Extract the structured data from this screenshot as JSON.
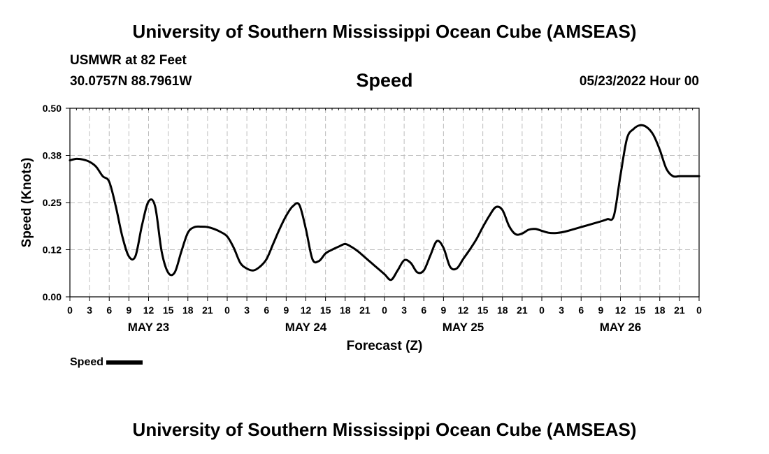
{
  "header": {
    "title": "University of Southern Mississippi Ocean Cube (AMSEAS)",
    "station": "USMWR at 82 Feet",
    "coords": "30.0757N  88.7961W",
    "run_time": "05/23/2022 Hour 00"
  },
  "footer": {
    "title": "University of Southern Mississippi Ocean Cube (AMSEAS)"
  },
  "legend": {
    "label": "Speed"
  },
  "chart_data": {
    "type": "line",
    "title": "Speed",
    "xlabel": "Forecast (Z)",
    "ylabel": "Speed (Knots)",
    "xlim": [
      0,
      96
    ],
    "ylim": [
      0,
      0.5
    ],
    "yticks": [
      "0.00",
      "0.12",
      "0.25",
      "0.38",
      "0.50"
    ],
    "xtick_labels": [
      "0",
      "3",
      "6",
      "9",
      "12",
      "15",
      "18",
      "21",
      "0",
      "3",
      "6",
      "9",
      "12",
      "15",
      "18",
      "21",
      "0",
      "3",
      "6",
      "9",
      "12",
      "15",
      "18",
      "21",
      "0",
      "3",
      "6",
      "9",
      "12",
      "15",
      "18",
      "21",
      "0"
    ],
    "day_labels": [
      {
        "label": "MAY 23",
        "hour": 12
      },
      {
        "label": "MAY 24",
        "hour": 36
      },
      {
        "label": "MAY 25",
        "hour": 60
      },
      {
        "label": "MAY 26",
        "hour": 84
      }
    ],
    "grid": true,
    "series": [
      {
        "name": "Speed",
        "color": "#000000",
        "x": [
          0,
          1,
          2,
          3,
          4,
          5,
          6,
          7,
          8,
          9,
          10,
          11,
          12,
          13,
          14,
          15,
          16,
          17,
          18,
          19,
          20,
          21,
          22,
          23,
          24,
          25,
          26,
          27,
          28,
          29,
          30,
          31,
          32,
          33,
          34,
          35,
          36,
          37,
          38,
          39,
          40,
          41,
          42,
          43,
          44,
          45,
          46,
          47,
          48,
          49,
          50,
          51,
          52,
          53,
          54,
          55,
          56,
          57,
          58,
          59,
          60,
          61,
          62,
          63,
          64,
          65,
          66,
          67,
          68,
          69,
          70,
          71,
          72,
          73,
          74,
          75,
          76,
          77,
          78,
          79,
          80,
          81,
          82,
          83,
          84,
          85,
          86,
          87,
          88,
          89,
          90,
          91,
          92,
          93,
          94,
          95,
          96
        ],
        "values": [
          0.362,
          0.366,
          0.364,
          0.358,
          0.345,
          0.32,
          0.305,
          0.24,
          0.16,
          0.107,
          0.108,
          0.19,
          0.253,
          0.24,
          0.12,
          0.064,
          0.065,
          0.12,
          0.17,
          0.185,
          0.186,
          0.185,
          0.18,
          0.172,
          0.16,
          0.13,
          0.09,
          0.075,
          0.07,
          0.08,
          0.1,
          0.14,
          0.18,
          0.215,
          0.24,
          0.244,
          0.18,
          0.1,
          0.095,
          0.115,
          0.125,
          0.133,
          0.14,
          0.132,
          0.12,
          0.105,
          0.09,
          0.075,
          0.06,
          0.045,
          0.07,
          0.097,
          0.09,
          0.065,
          0.07,
          0.11,
          0.148,
          0.13,
          0.08,
          0.075,
          0.1,
          0.125,
          0.152,
          0.185,
          0.215,
          0.238,
          0.23,
          0.188,
          0.166,
          0.168,
          0.178,
          0.18,
          0.175,
          0.17,
          0.169,
          0.171,
          0.175,
          0.18,
          0.185,
          0.19,
          0.195,
          0.2,
          0.206,
          0.215,
          0.322,
          0.42,
          0.445,
          0.455,
          0.45,
          0.43,
          0.39,
          0.34,
          0.32,
          0.32,
          0.32,
          0.32,
          0.32
        ]
      }
    ]
  }
}
